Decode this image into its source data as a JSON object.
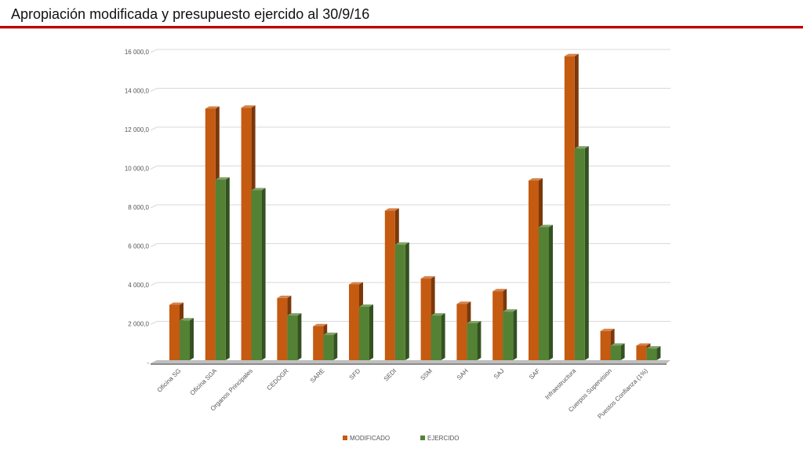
{
  "header": {
    "title": "Apropiación modificada y presupuesto ejercido al 30/9/16"
  },
  "colors": {
    "modificado": "#c55a11",
    "ejercido": "#548235",
    "accent_rule": "#c00000"
  },
  "chart_data": {
    "type": "bar",
    "title": "",
    "xlabel": "",
    "ylabel": "",
    "ylim": [
      0,
      16000
    ],
    "yticks": [
      0,
      2000,
      4000,
      6000,
      8000,
      10000,
      12000,
      14000,
      16000
    ],
    "ytick_labels": [
      "-",
      "2 000,0",
      "4 000,0",
      "6 000,0",
      "8 000,0",
      "10 000,0",
      "12 000,0",
      "14 000,0",
      "16 000,0"
    ],
    "grid": true,
    "legend_position": "bottom",
    "categories": [
      "Oficina SG",
      "Oficina SGA",
      "Organos Principales",
      "CEDOGR",
      "SARE",
      "SFD",
      "SEDI",
      "SSM",
      "SAH",
      "SAJ",
      "SAF",
      "Infraestructura",
      "Cuerpos Supervision",
      "Puestos Confianza (1%)"
    ],
    "series": [
      {
        "name": "MODIFICADO",
        "values": [
          2850,
          12950,
          13000,
          3200,
          1750,
          3900,
          7700,
          4200,
          2900,
          3550,
          9250,
          15650,
          1500,
          750
        ]
      },
      {
        "name": "EJERCIDO",
        "values": [
          2050,
          9300,
          8750,
          2300,
          1300,
          2750,
          5950,
          2300,
          1900,
          2500,
          6850,
          10900,
          750,
          600
        ]
      }
    ]
  }
}
